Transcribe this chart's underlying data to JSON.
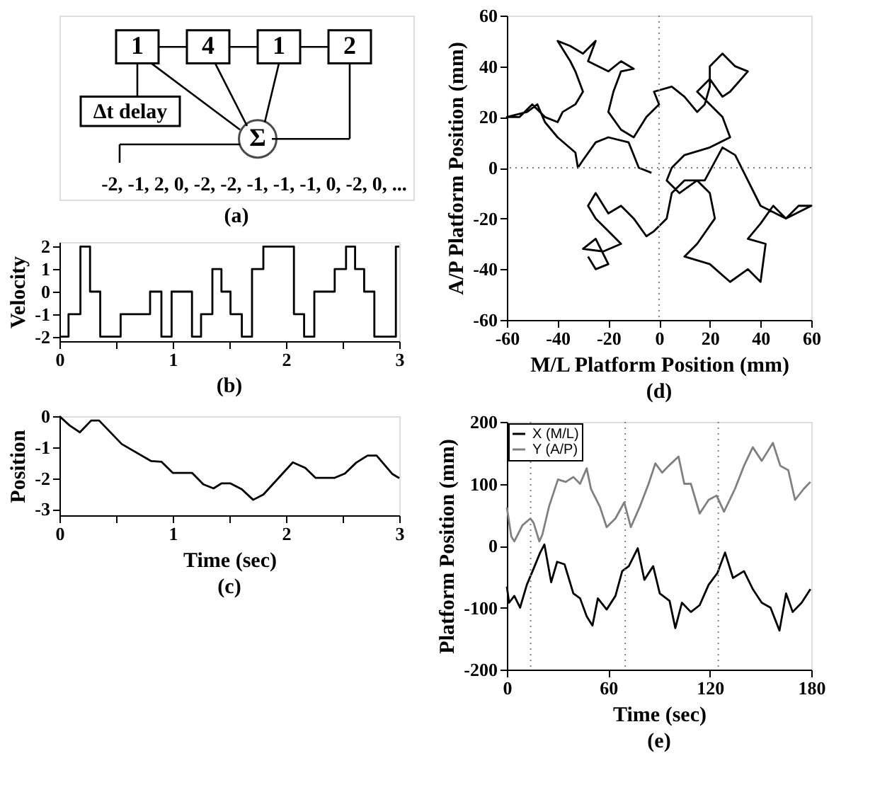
{
  "chart_data": [
    {
      "type": "other",
      "title": "(a)",
      "annotations": [
        "1",
        "4",
        "1",
        "2",
        "Δt delay",
        "Σ",
        "-2, -1, 2, 0, -2, -2, -1, -1, -1, 0, -2, 0, ..."
      ]
    },
    {
      "type": "step",
      "title": "(b)",
      "ylabel": "Velocity",
      "x": [
        0,
        0.08,
        0.185,
        0.27,
        0.36,
        0.54,
        0.8,
        0.9,
        0.99,
        1.17,
        1.25,
        1.35,
        1.43,
        1.51,
        1.61,
        1.7,
        1.8,
        2.07,
        2.16,
        2.25,
        2.43,
        2.53,
        2.61,
        2.69,
        2.78,
        2.97,
        3.0
      ],
      "values": [
        -2,
        -1,
        2,
        0,
        -2,
        -1,
        0,
        -2,
        0,
        -2,
        -1,
        1,
        0,
        -1,
        -2,
        1,
        2,
        -1,
        -2,
        0,
        1,
        2,
        1,
        0,
        -2,
        2,
        2
      ],
      "color": "#000000",
      "xlim": [
        0,
        3
      ],
      "ylim": [
        -2.2,
        2.2
      ],
      "xticks": [
        0,
        {
          "value": 0.5,
          "label": null
        },
        1,
        {
          "value": 1.5,
          "label": null
        },
        2,
        {
          "value": 2.5,
          "label": null
        },
        3
      ],
      "yticks": [
        -2,
        -1,
        0,
        1,
        2
      ],
      "grid": false,
      "legend": false
    },
    {
      "type": "line",
      "title": "(c)",
      "xlabel": "Time (sec)",
      "ylabel": "Position",
      "x": [
        0,
        0.09,
        0.18,
        0.28,
        0.35,
        0.55,
        0.81,
        0.9,
        1.0,
        1.17,
        1.27,
        1.36,
        1.43,
        1.51,
        1.61,
        1.71,
        1.8,
        2.06,
        2.17,
        2.26,
        2.43,
        2.52,
        2.62,
        2.72,
        2.8,
        2.94,
        3.0
      ],
      "values": [
        0,
        -0.3,
        -0.52,
        -0.14,
        -0.14,
        -0.9,
        -1.45,
        -1.47,
        -1.83,
        -1.83,
        -2.2,
        -2.33,
        -2.17,
        -2.17,
        -2.36,
        -2.7,
        -2.53,
        -1.49,
        -1.67,
        -1.99,
        -1.99,
        -1.85,
        -1.5,
        -1.27,
        -1.27,
        -1.87,
        -2.0
      ],
      "color": "#000000",
      "xlim": [
        0,
        3
      ],
      "ylim": [
        -3.2,
        0
      ],
      "xticks": [
        0,
        {
          "value": 0.5,
          "label": null
        },
        1,
        {
          "value": 1.5,
          "label": null
        },
        2,
        {
          "value": 2.5,
          "label": null
        },
        3
      ],
      "yticks": [
        -3,
        -2,
        -1,
        0
      ],
      "grid": false,
      "legend": false
    },
    {
      "type": "line",
      "title": "(d)",
      "xlabel": "M/L Platform Position (mm)",
      "ylabel": "A/P Platform Position (mm)",
      "x": [
        -3,
        -8,
        -10,
        -12,
        -20,
        -25,
        -30,
        -32,
        -33,
        -40,
        -45,
        -48,
        -52,
        -60,
        -55,
        -50,
        -45,
        -40,
        -38,
        -33,
        -30,
        -33,
        -35,
        -40,
        -35,
        -30,
        -25,
        -28,
        -20,
        -15,
        -10,
        -15,
        -18,
        -20,
        -15,
        -10,
        -5,
        0,
        -2,
        5,
        10,
        15,
        18,
        20,
        20,
        25,
        30,
        35,
        28,
        25,
        20,
        15,
        25,
        28,
        20,
        10,
        5,
        3,
        8,
        15,
        20,
        22,
        15,
        10,
        20,
        28,
        35,
        40,
        42,
        35,
        40,
        45,
        50,
        55,
        60,
        50,
        40,
        35,
        30,
        25,
        18,
        10,
        5,
        3,
        -2,
        -5,
        -10,
        -15,
        -20,
        -25,
        -28,
        -25,
        -20,
        -15,
        -22,
        -30,
        -25,
        -20,
        -25,
        -28
      ],
      "values": [
        -2,
        0,
        5,
        10,
        12,
        10,
        3,
        0,
        6,
        12,
        18,
        25,
        22,
        20,
        20,
        25,
        20,
        18,
        22,
        25,
        30,
        38,
        42,
        50,
        48,
        45,
        50,
        42,
        38,
        42,
        39,
        38,
        30,
        22,
        15,
        12,
        20,
        25,
        30,
        32,
        28,
        22,
        25,
        32,
        40,
        45,
        40,
        38,
        30,
        28,
        35,
        30,
        20,
        12,
        8,
        5,
        0,
        -5,
        -10,
        -5,
        -10,
        -20,
        -30,
        -35,
        -38,
        -45,
        -40,
        -45,
        -30,
        -28,
        -22,
        -15,
        -20,
        -15,
        -15,
        -20,
        -15,
        -5,
        5,
        8,
        -5,
        -5,
        -10,
        -20,
        -25,
        -27,
        -20,
        -15,
        -18,
        -10,
        -15,
        -20,
        -25,
        -30,
        -33,
        -32,
        -28,
        -38,
        -40,
        -35
      ],
      "color": "#000000",
      "xlim": [
        -60,
        60
      ],
      "ylim": [
        -60,
        60
      ],
      "xticks": [
        -60,
        -40,
        -20,
        0,
        20,
        40,
        60
      ],
      "yticks": [
        -60,
        -40,
        -20,
        0,
        20,
        40,
        60
      ],
      "ref_lines": [
        {
          "axis": "x",
          "value": 0,
          "label": null,
          "color": "#808080",
          "line_style": "dotted"
        },
        {
          "axis": "y",
          "value": 0,
          "label": null,
          "color": "#808080",
          "line_style": "dotted"
        }
      ],
      "grid": false,
      "legend": false
    },
    {
      "type": "line",
      "title": "(e)",
      "xlabel": "Time (sec)",
      "ylabel": "Platform Position (mm)",
      "series": [
        {
          "name": "X (M/L)",
          "color": "#000000",
          "x": [
            0,
            1.3,
            4.4,
            7.8,
            11.8,
            15.8,
            19.7,
            22.2,
            26.2,
            29.7,
            34.1,
            39.3,
            43.3,
            47.2,
            50.6,
            53.8,
            59,
            64.2,
            68.2,
            72.1,
            77.4,
            81.3,
            86.5,
            90.4,
            96.2,
            99.6,
            103.5,
            108.8,
            114,
            119.3,
            124.5,
            129,
            133.7,
            140.2,
            145.4,
            150.7,
            155.9,
            161.2,
            165.1,
            169,
            174.3,
            179.5
          ],
          "values": [
            -66,
            -92,
            -81,
            -100,
            -63,
            -37,
            -11,
            2,
            -59,
            -26,
            -30,
            -77,
            -85,
            -114,
            -129,
            -85,
            -103,
            -81,
            -41,
            -33,
            -4,
            -55,
            -33,
            -77,
            -89,
            -133,
            -92,
            -107,
            -96,
            -63,
            -44,
            -11,
            -52,
            -41,
            -70,
            -92,
            -100,
            -137,
            -77,
            -107,
            -92,
            -70
          ]
        },
        {
          "name": "Y (A/P)",
          "color": "#808080",
          "x": [
            0,
            2.6,
            4.4,
            9.2,
            13.9,
            15.8,
            19.2,
            21,
            24.9,
            30.2,
            34.8,
            39.3,
            43.3,
            47.2,
            49.7,
            55,
            59,
            64.2,
            69.4,
            73.3,
            78.6,
            83.8,
            87.8,
            91.8,
            95.7,
            101.5,
            104.9,
            108.8,
            114,
            119.3,
            124,
            128.4,
            134.9,
            140.2,
            145.4,
            150.7,
            157.3,
            161.7,
            166.4,
            170.4,
            175.6,
            179.5
          ],
          "values": [
            62,
            15,
            7,
            33,
            44,
            37,
            7,
            18,
            63,
            107,
            103,
            111,
            100,
            125,
            92,
            63,
            30,
            44,
            70,
            30,
            63,
            100,
            133,
            118,
            129,
            144,
            100,
            100,
            52,
            74,
            81,
            55,
            92,
            129,
            159,
            137,
            166,
            129,
            122,
            74,
            92,
            103
          ]
        }
      ],
      "xlim": [
        0,
        180
      ],
      "ylim": [
        -200,
        200
      ],
      "xticks": [
        0,
        60,
        120,
        180
      ],
      "yticks": [
        -200,
        -100,
        0,
        100,
        200
      ],
      "ref_lines": [
        {
          "axis": "x",
          "value": 14,
          "label": null,
          "color": "#808080",
          "line_style": "dotted"
        },
        {
          "axis": "x",
          "value": 70,
          "label": null,
          "color": "#808080",
          "line_style": "dotted"
        },
        {
          "axis": "x",
          "value": 125,
          "label": null,
          "color": "#808080",
          "line_style": "dotted"
        }
      ],
      "grid": false,
      "legend": "top left"
    }
  ]
}
